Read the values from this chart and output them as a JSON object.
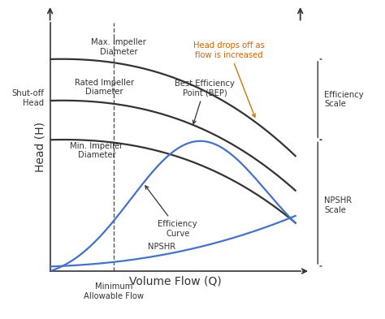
{
  "xlabel": "Volume Flow (Q)",
  "ylabel": "Head (H)",
  "background_color": "#ffffff",
  "line_color_head": "#333333",
  "line_color_blue": "#4472c4",
  "annotation_color": "#cc6600",
  "labels": {
    "max_impeller": "Max. Impeller\nDiameter",
    "rated_impeller": "Rated Impeller\nDiameter",
    "min_impeller": "Min. Impeller\nDiameter",
    "shutoff": "Shut-off\nHead",
    "bep": "Best Efficiency\nPoint (BEP)",
    "efficiency_curve": "Efficiency\nCurve",
    "npshr": "NPSHR",
    "min_flow": "Minimum\nAllowable Flow",
    "head_drops": "Head drops off as\nflow is increased",
    "efficiency_scale": "Efficiency\nScale",
    "npshr_scale": "NPSHR\nScale"
  }
}
